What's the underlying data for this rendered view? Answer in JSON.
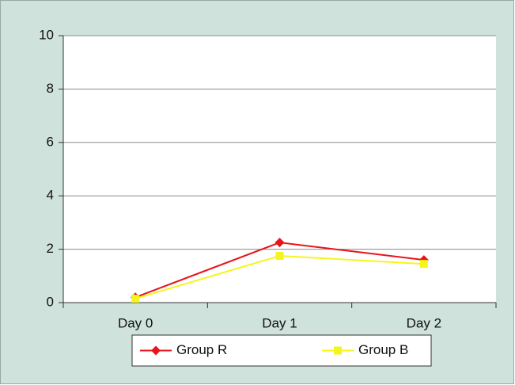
{
  "chart_data": {
    "type": "line",
    "categories": [
      "Day 0",
      "Day 1",
      "Day 2"
    ],
    "series": [
      {
        "name": "Group R",
        "color": "#e8141b",
        "marker": "diamond",
        "values": [
          0.2,
          2.25,
          1.6
        ]
      },
      {
        "name": "Group B",
        "color": "#f5f51e",
        "marker": "square",
        "values": [
          0.15,
          1.75,
          1.45
        ]
      }
    ],
    "ylim": [
      0,
      10
    ],
    "yticks": [
      0,
      2,
      4,
      6,
      8,
      10
    ],
    "grid": true,
    "legend": "bottom"
  }
}
